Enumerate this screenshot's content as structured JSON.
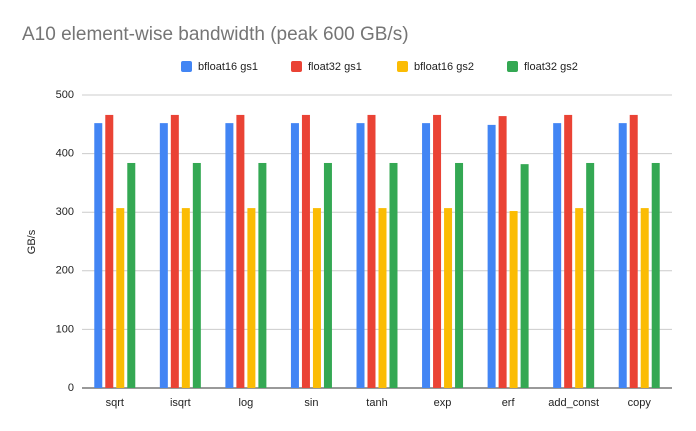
{
  "chart_data": {
    "type": "bar",
    "title": "A10 element-wise bandwidth (peak 600 GB/s)",
    "y_label": "GB/s",
    "categories": [
      "sqrt",
      "isqrt",
      "log",
      "sin",
      "tanh",
      "exp",
      "erf",
      "add_const",
      "copy"
    ],
    "series": [
      {
        "name": "bfloat16 gs1",
        "color": "#4285f4",
        "values": [
          452,
          452,
          452,
          452,
          452,
          452,
          449,
          452,
          452
        ]
      },
      {
        "name": "float32 gs1",
        "color": "#ea4335",
        "values": [
          466,
          466,
          466,
          466,
          466,
          466,
          464,
          466,
          466
        ]
      },
      {
        "name": "bfloat16 gs2",
        "color": "#fbbc04",
        "values": [
          307,
          307,
          307,
          307,
          307,
          307,
          302,
          307,
          307
        ]
      },
      {
        "name": "float32 gs2",
        "color": "#34a853",
        "values": [
          384,
          384,
          384,
          384,
          384,
          384,
          382,
          384,
          384
        ]
      }
    ],
    "ylim": [
      0,
      500
    ],
    "yticks": [
      0,
      100,
      200,
      300,
      400,
      500
    ],
    "grid": true,
    "legend": "top"
  }
}
